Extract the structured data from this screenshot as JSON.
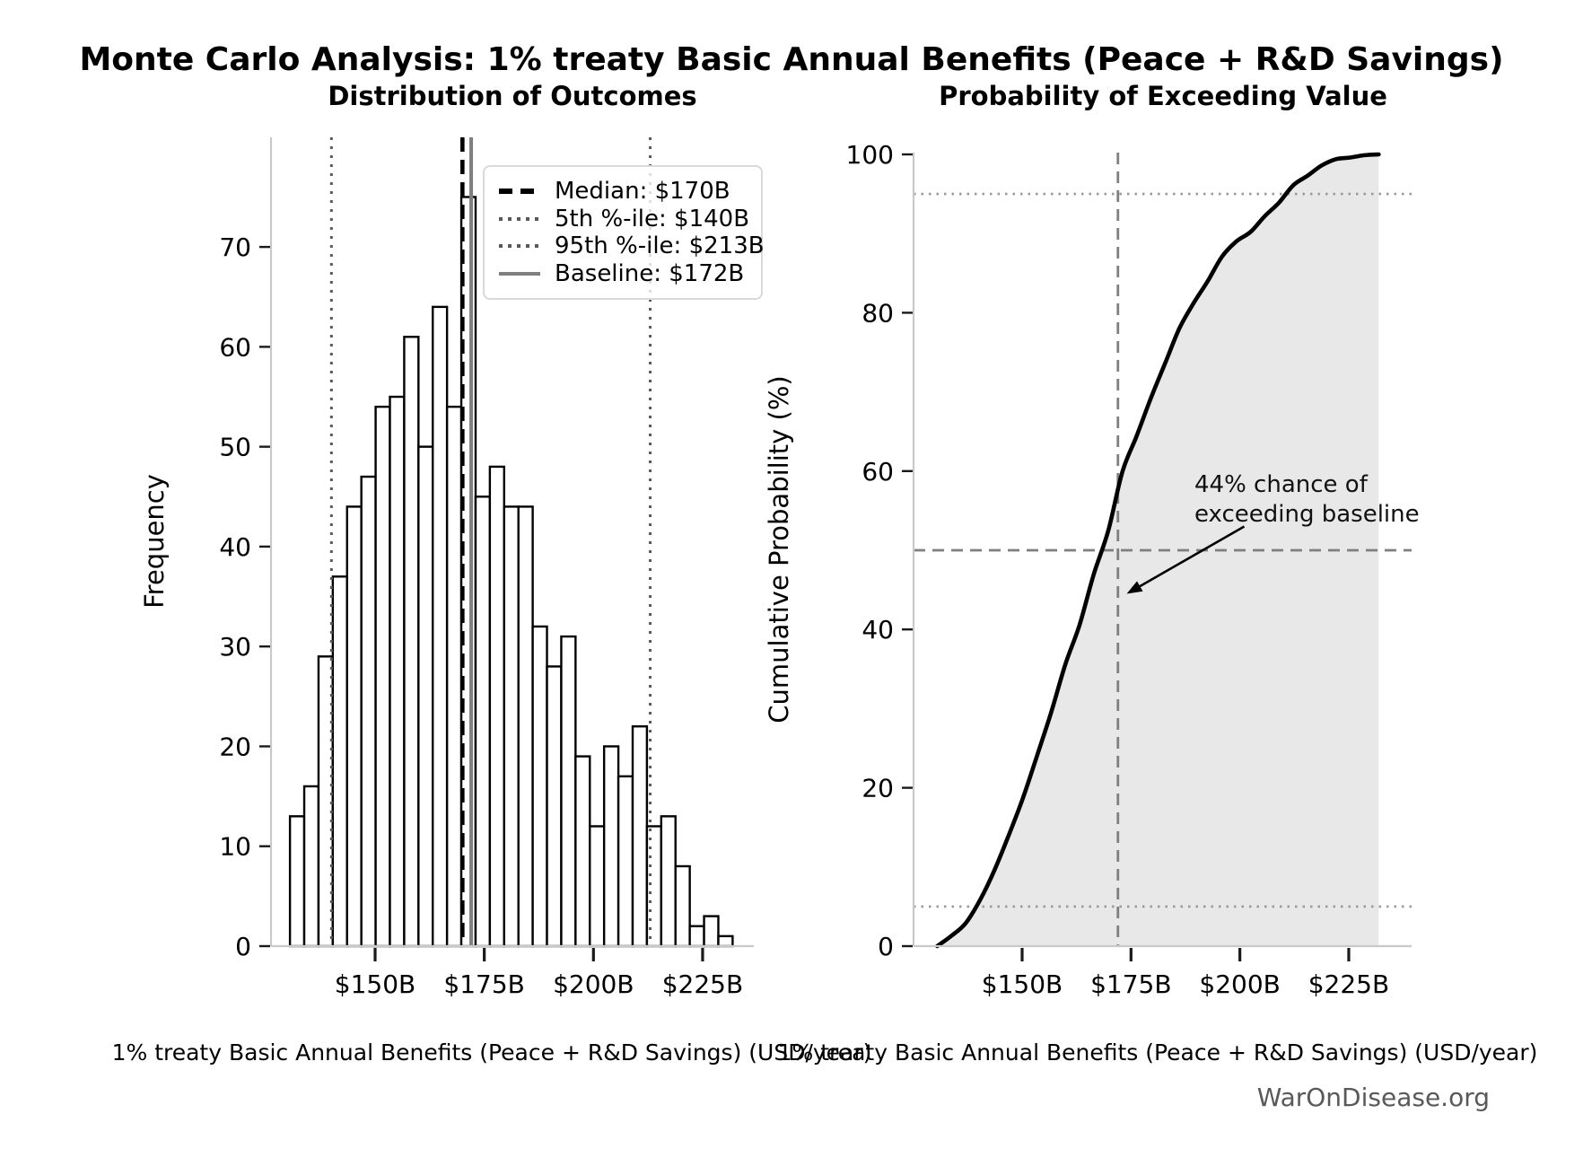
{
  "figure": {
    "title": "Monte Carlo Analysis: 1% treaty Basic Annual Benefits (Peace + R&D Savings)",
    "watermark": "WarOnDisease.org"
  },
  "chart_data": [
    {
      "type": "bar",
      "subtype": "histogram",
      "title": "Distribution of Outcomes",
      "xlabel": "1% treaty Basic Annual Benefits (Peace + R&D Savings) (USD/year)",
      "ylabel": "Frequency",
      "n_samples": 1000,
      "bin_start_usd_b": 130.5,
      "bin_width_usd_b": 3.27,
      "frequencies": [
        13,
        16,
        29,
        37,
        44,
        47,
        54,
        55,
        61,
        50,
        64,
        54,
        75,
        45,
        48,
        44,
        44,
        32,
        28,
        31,
        19,
        12,
        20,
        17,
        22,
        12,
        13,
        8,
        2,
        3,
        1
      ],
      "x_ticks": [
        {
          "value": 150,
          "label": "$150B"
        },
        {
          "value": 175,
          "label": "$175B"
        },
        {
          "value": 200,
          "label": "$200B"
        },
        {
          "value": 225,
          "label": "$225B"
        }
      ],
      "y_ticks": [
        0,
        10,
        20,
        30,
        40,
        50,
        60,
        70
      ],
      "ylim": [
        0,
        81
      ],
      "grid": false,
      "bar_fill": "#ffffff",
      "bar_edge": "#000000",
      "reference_lines": [
        {
          "name": "median",
          "value": 170,
          "style": "dashed",
          "color": "#000000",
          "legend_label": "Median: $170B"
        },
        {
          "name": "pctile-5",
          "value": 140,
          "style": "dotted",
          "color": "#595959",
          "legend_label": "5th %-ile: $140B"
        },
        {
          "name": "pctile-95",
          "value": 213,
          "style": "dotted",
          "color": "#595959",
          "legend_label": "95th %-ile: $213B"
        },
        {
          "name": "baseline",
          "value": 172,
          "style": "solid",
          "color": "#7f7f7f",
          "legend_label": "Baseline: $172B"
        }
      ],
      "legend_position": "upper right"
    },
    {
      "type": "area",
      "subtype": "empirical-cdf",
      "title": "Probability of Exceeding Value",
      "xlabel": "1% treaty Basic Annual Benefits (Peace + R&D Savings) (USD/year)",
      "ylabel": "Cumulative Probability (%)",
      "x_start_usd_b": 130.5,
      "x_step_usd_b": 3.27,
      "cumulative_percent": [
        0,
        1.3,
        2.9,
        5.8,
        9.5,
        13.9,
        18.6,
        24.0,
        29.5,
        35.6,
        40.6,
        47.0,
        52.4,
        59.9,
        64.4,
        69.2,
        73.6,
        78.0,
        81.2,
        84.0,
        87.1,
        89.0,
        90.2,
        92.2,
        93.9,
        96.1,
        97.3,
        98.6,
        99.4,
        99.6,
        99.9,
        100.0
      ],
      "x_ticks": [
        {
          "value": 150,
          "label": "$150B"
        },
        {
          "value": 175,
          "label": "$175B"
        },
        {
          "value": 200,
          "label": "$200B"
        },
        {
          "value": 225,
          "label": "$225B"
        }
      ],
      "y_ticks": [
        0,
        20,
        40,
        60,
        80,
        100
      ],
      "ylim": [
        0,
        100
      ],
      "grid": false,
      "line_color": "#000000",
      "fill_color": "#e8e8e8",
      "reference_lines": [
        {
          "name": "baseline",
          "orientation": "vertical",
          "value": 172,
          "style": "dashed",
          "color": "#7f7f7f"
        },
        {
          "name": "fifty-percent",
          "orientation": "horizontal",
          "value": 50,
          "style": "dashed",
          "color": "#7f7f7f"
        },
        {
          "name": "ninety-five-percent",
          "orientation": "horizontal",
          "value": 95,
          "style": "dotted",
          "color": "#999999"
        },
        {
          "name": "five-percent",
          "orientation": "horizontal",
          "value": 5,
          "style": "dotted",
          "color": "#999999"
        }
      ],
      "annotation": {
        "line1": "44% chance of",
        "line2": "exceeding baseline",
        "arrow_tip_x_usd_b": 174,
        "arrow_tip_y_pct": 44.5
      }
    }
  ]
}
